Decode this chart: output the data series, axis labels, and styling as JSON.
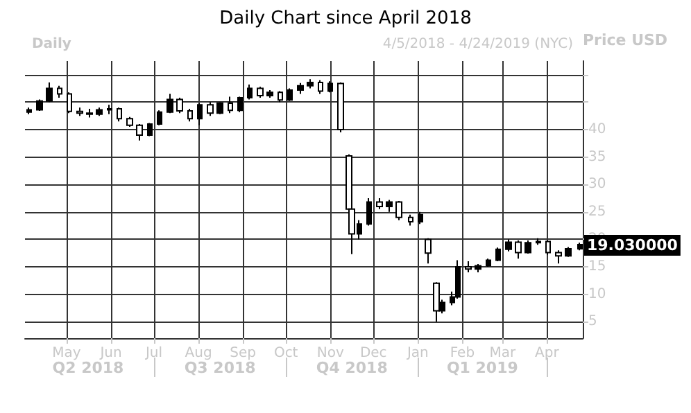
{
  "chart_data": {
    "type": "candlestick",
    "title": "Daily Chart since April 2018",
    "subtitle": "4/5/2018 - 4/24/2019 (NYC)",
    "ylabel": "Price USD",
    "annotations": [
      "Daily",
      {
        "text": "19.030000",
        "x": "2019-04-24",
        "y": 19.03
      }
    ],
    "x": [
      "2018-04-05",
      "2018-04-12",
      "2018-04-19",
      "2018-04-26",
      "2018-05-03",
      "2018-05-10",
      "2018-05-17",
      "2018-05-24",
      "2018-05-31",
      "2018-06-07",
      "2018-06-14",
      "2018-06-21",
      "2018-06-28",
      "2018-07-05",
      "2018-07-12",
      "2018-07-19",
      "2018-07-26",
      "2018-08-02",
      "2018-08-09",
      "2018-08-16",
      "2018-08-23",
      "2018-08-30",
      "2018-09-06",
      "2018-09-13",
      "2018-09-20",
      "2018-09-27",
      "2018-10-04",
      "2018-10-11",
      "2018-10-18",
      "2018-10-25",
      "2018-11-01",
      "2018-11-08",
      "2018-11-14",
      "2018-11-16",
      "2018-11-21",
      "2018-11-28",
      "2018-12-05",
      "2018-12-12",
      "2018-12-19",
      "2018-12-27",
      "2019-01-03",
      "2019-01-08",
      "2019-01-14",
      "2019-01-18",
      "2019-01-25",
      "2019-01-29",
      "2019-02-05",
      "2019-02-12",
      "2019-02-19",
      "2019-02-26",
      "2019-03-05",
      "2019-03-12",
      "2019-03-19",
      "2019-03-26",
      "2019-04-02",
      "2019-04-09",
      "2019-04-16",
      "2019-04-24"
    ],
    "ohlc": [
      [
        43.2,
        44.0,
        42.8,
        43.6
      ],
      [
        43.6,
        45.5,
        43.4,
        45.2
      ],
      [
        45.2,
        48.6,
        45.0,
        47.5
      ],
      [
        47.5,
        48.0,
        45.8,
        46.5
      ],
      [
        46.5,
        46.8,
        43.0,
        43.3
      ],
      [
        43.3,
        44.0,
        42.5,
        43.0
      ],
      [
        43.0,
        43.8,
        42.2,
        42.8
      ],
      [
        42.8,
        44.0,
        42.5,
        43.6
      ],
      [
        43.6,
        44.5,
        42.8,
        43.8
      ],
      [
        43.8,
        44.0,
        41.5,
        42.0
      ],
      [
        42.0,
        42.3,
        40.5,
        40.8
      ],
      [
        40.8,
        41.0,
        38.0,
        39.0
      ],
      [
        39.0,
        41.2,
        38.8,
        41.0
      ],
      [
        41.0,
        43.5,
        40.8,
        43.2
      ],
      [
        43.2,
        46.5,
        43.0,
        45.5
      ],
      [
        45.5,
        45.8,
        43.0,
        43.4
      ],
      [
        43.4,
        43.8,
        41.5,
        42.0
      ],
      [
        42.0,
        44.8,
        40.8,
        44.5
      ],
      [
        44.5,
        45.0,
        42.5,
        43.0
      ],
      [
        43.0,
        45.0,
        42.8,
        44.8
      ],
      [
        44.8,
        46.0,
        43.0,
        43.5
      ],
      [
        43.5,
        46.0,
        43.2,
        45.8
      ],
      [
        45.8,
        48.2,
        45.5,
        47.5
      ],
      [
        47.5,
        47.8,
        45.8,
        46.2
      ],
      [
        46.2,
        47.2,
        45.8,
        46.8
      ],
      [
        46.8,
        47.0,
        45.0,
        45.4
      ],
      [
        45.4,
        47.5,
        45.2,
        47.2
      ],
      [
        47.2,
        48.5,
        46.5,
        48.0
      ],
      [
        48.0,
        49.2,
        47.5,
        48.6
      ],
      [
        48.6,
        49.0,
        46.5,
        47.0
      ],
      [
        47.0,
        48.8,
        46.8,
        48.4
      ],
      [
        48.4,
        48.6,
        39.5,
        40.0
      ],
      [
        35.2,
        35.5,
        25.0,
        25.5
      ],
      [
        25.5,
        26.0,
        17.3,
        21.0
      ],
      [
        21.0,
        23.5,
        20.0,
        22.8
      ],
      [
        22.8,
        27.5,
        22.5,
        26.8
      ],
      [
        26.8,
        27.5,
        25.5,
        26.0
      ],
      [
        26.0,
        27.2,
        25.0,
        26.8
      ],
      [
        26.8,
        27.0,
        23.5,
        24.0
      ],
      [
        24.0,
        24.5,
        22.5,
        23.2
      ],
      [
        23.2,
        25.0,
        22.8,
        24.5
      ],
      [
        20.0,
        20.2,
        15.6,
        17.5
      ],
      [
        12.0,
        12.2,
        5.0,
        7.0
      ],
      [
        7.0,
        9.0,
        6.5,
        8.5
      ],
      [
        8.5,
        10.5,
        8.0,
        9.5
      ],
      [
        9.5,
        16.2,
        9.2,
        15.0
      ],
      [
        15.0,
        16.0,
        14.0,
        14.6
      ],
      [
        14.6,
        15.5,
        14.0,
        15.2
      ],
      [
        15.2,
        16.5,
        15.0,
        16.2
      ],
      [
        16.2,
        18.5,
        16.0,
        18.2
      ],
      [
        18.2,
        20.0,
        17.8,
        19.5
      ],
      [
        19.5,
        19.8,
        16.5,
        17.6
      ],
      [
        17.6,
        19.8,
        17.4,
        19.4
      ],
      [
        19.4,
        20.2,
        19.0,
        19.6
      ],
      [
        19.6,
        19.8,
        17.2,
        17.6
      ],
      [
        17.6,
        18.0,
        15.6,
        17.0
      ],
      [
        17.0,
        18.6,
        16.8,
        18.3
      ],
      [
        18.3,
        19.4,
        18.0,
        19.03
      ]
    ],
    "color": "#000000",
    "xlim": [
      "2018-04-02",
      "2019-04-26"
    ],
    "xticks": [
      {
        "value": "2018-05-01",
        "label": "May"
      },
      {
        "value": "2018-06-01",
        "label": "Jun"
      },
      {
        "value": "2018-07-01",
        "label": "Jul"
      },
      {
        "value": "2018-08-01",
        "label": "Aug"
      },
      {
        "value": "2018-09-01",
        "label": "Sep"
      },
      {
        "value": "2018-10-01",
        "label": "Oct"
      },
      {
        "value": "2018-11-01",
        "label": "Nov"
      },
      {
        "value": "2018-12-01",
        "label": "Dec"
      },
      {
        "value": "2019-01-01",
        "label": "Jan"
      },
      {
        "value": "2019-02-01",
        "label": "Feb"
      },
      {
        "value": "2019-03-01",
        "label": "Mar"
      },
      {
        "value": "2019-04-01",
        "label": "Apr"
      }
    ],
    "x2lim": [
      "2018-04-02",
      "2019-04-26"
    ],
    "x2ticks": [
      {
        "value": "2018-05-16",
        "label": "Q2 2018"
      },
      {
        "value": "2018-07-01",
        "label": null
      },
      {
        "value": "2018-08-16",
        "label": "Q3 2018"
      },
      {
        "value": "2018-10-01",
        "label": null
      },
      {
        "value": "2018-11-16",
        "label": "Q4 2018"
      },
      {
        "value": "2019-01-01",
        "label": null
      },
      {
        "value": "2019-02-15",
        "label": "Q1 2019"
      },
      {
        "value": "2019-04-01",
        "label": null
      }
    ],
    "ylim": [
      2,
      52.5
    ],
    "yticks": [
      5,
      10,
      15,
      20,
      25,
      30,
      35,
      40,
      {
        "value": 45,
        "label": null
      },
      {
        "value": 50,
        "label": null
      }
    ],
    "grid": true
  }
}
